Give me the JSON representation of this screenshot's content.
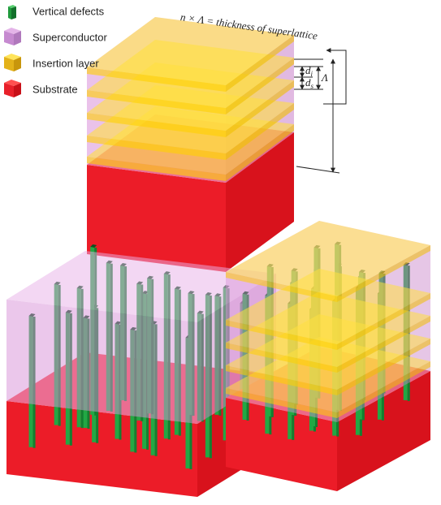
{
  "legend": [
    {
      "label": "Vertical defects"
    },
    {
      "label": "Superconductor"
    },
    {
      "label": "Insertion layer"
    },
    {
      "label": "Substrate"
    }
  ],
  "annotations": {
    "thickness": "n × Λ = thickness of superlattice",
    "insertion_thickness": {
      "symbol": "d",
      "subscript": "i"
    },
    "superconductor_thickness": {
      "symbol": "d",
      "subscript": "s"
    },
    "period": "Λ"
  }
}
